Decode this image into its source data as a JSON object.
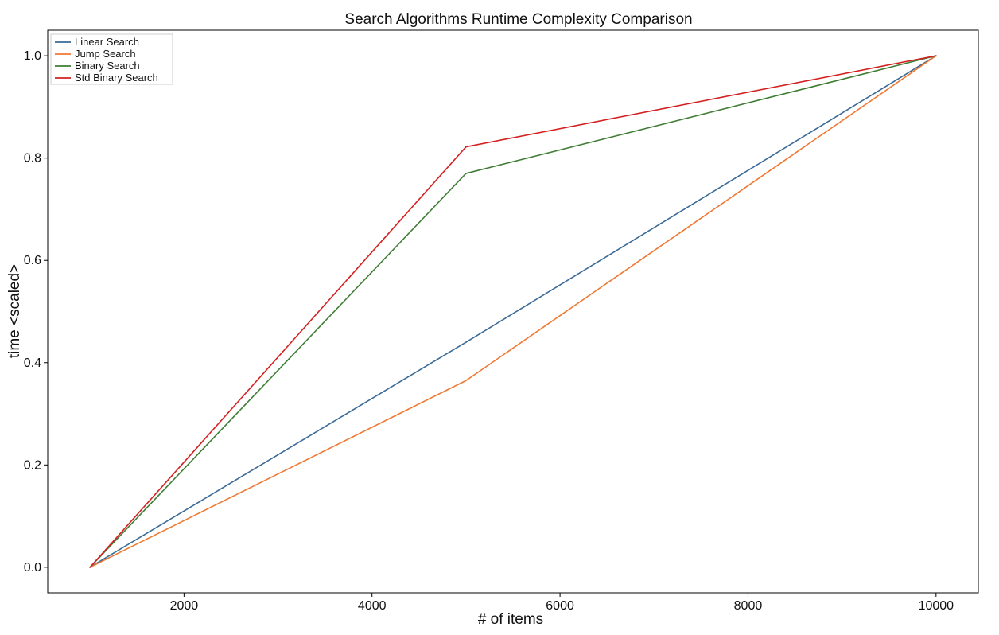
{
  "chart_data": {
    "type": "line",
    "title": "Search Algorithms Runtime Complexity Comparison",
    "xlabel": "# of items",
    "ylabel": "time <scaled>",
    "x": [
      1000,
      5000,
      10000
    ],
    "xlim": [
      550,
      10450
    ],
    "ylim": [
      -0.05,
      1.05
    ],
    "xticks": [
      2000,
      4000,
      6000,
      8000,
      10000
    ],
    "yticks": [
      0.0,
      0.2,
      0.4,
      0.6,
      0.8,
      1.0
    ],
    "xtick_labels": [
      "2000",
      "4000",
      "6000",
      "8000",
      "10000"
    ],
    "ytick_labels": [
      "0.0",
      "0.2",
      "0.4",
      "0.6",
      "0.8",
      "1.0"
    ],
    "grid": false,
    "legend_position": "top-left",
    "series": [
      {
        "name": "Linear Search",
        "color": "#3b6a96",
        "values": [
          0.0,
          0.44,
          1.0
        ]
      },
      {
        "name": "Jump Search",
        "color": "#f07832",
        "values": [
          0.0,
          0.365,
          1.0
        ]
      },
      {
        "name": "Binary Search",
        "color": "#3f7d35",
        "values": [
          0.0,
          0.77,
          1.0
        ]
      },
      {
        "name": "Std Binary Search",
        "color": "#d42020",
        "values": [
          0.0,
          0.822,
          1.0
        ]
      }
    ]
  }
}
